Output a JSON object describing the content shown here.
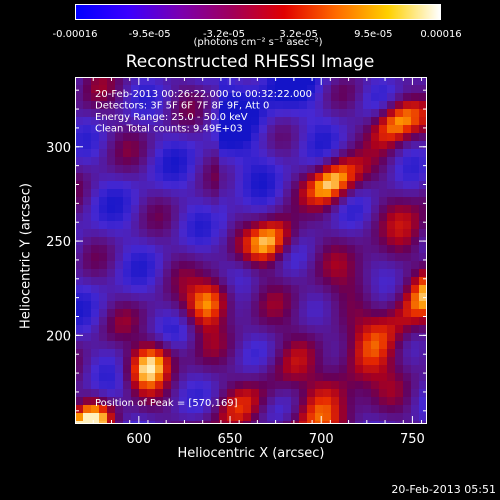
{
  "colorbar": {
    "ticks": [
      "-0.00016",
      "-9.5e-05",
      "-3.2e-05",
      "3.2e-05",
      "9.5e-05",
      "0.00016"
    ],
    "units": "(photons cm⁻² s⁻¹ asec⁻²)",
    "range": [
      -0.00016,
      0.00016
    ],
    "colors": [
      "#0000ff",
      "#3a00ff",
      "#7a00b0",
      "#a0005a",
      "#e00000",
      "#ff6a00",
      "#ffd000",
      "#ffffff"
    ]
  },
  "chart_data": {
    "type": "heatmap",
    "title": "Reconstructed RHESSI Image",
    "xlabel": "Heliocentric X (arcsec)",
    "ylabel": "Heliocentric Y (arcsec)",
    "xlim": [
      565,
      758
    ],
    "ylim": [
      153,
      337
    ],
    "xticks": [
      600,
      650,
      700,
      750
    ],
    "yticks": [
      200,
      250,
      300
    ],
    "annotations": [
      "20-Feb-2013 00:26:22.000 to 00:32:22.000",
      "Detectors: 3F 5F 6F 7F 8F 9F, Att 0",
      "Energy Range: 25.0 - 50.0 keV",
      "Clean    Total counts: 9.49E+03"
    ],
    "peak_label": "Position of Peak = [570,169]",
    "peak": [
      570,
      169
    ]
  },
  "footer": {
    "timestamp": "20-Feb-2013 05:51"
  }
}
